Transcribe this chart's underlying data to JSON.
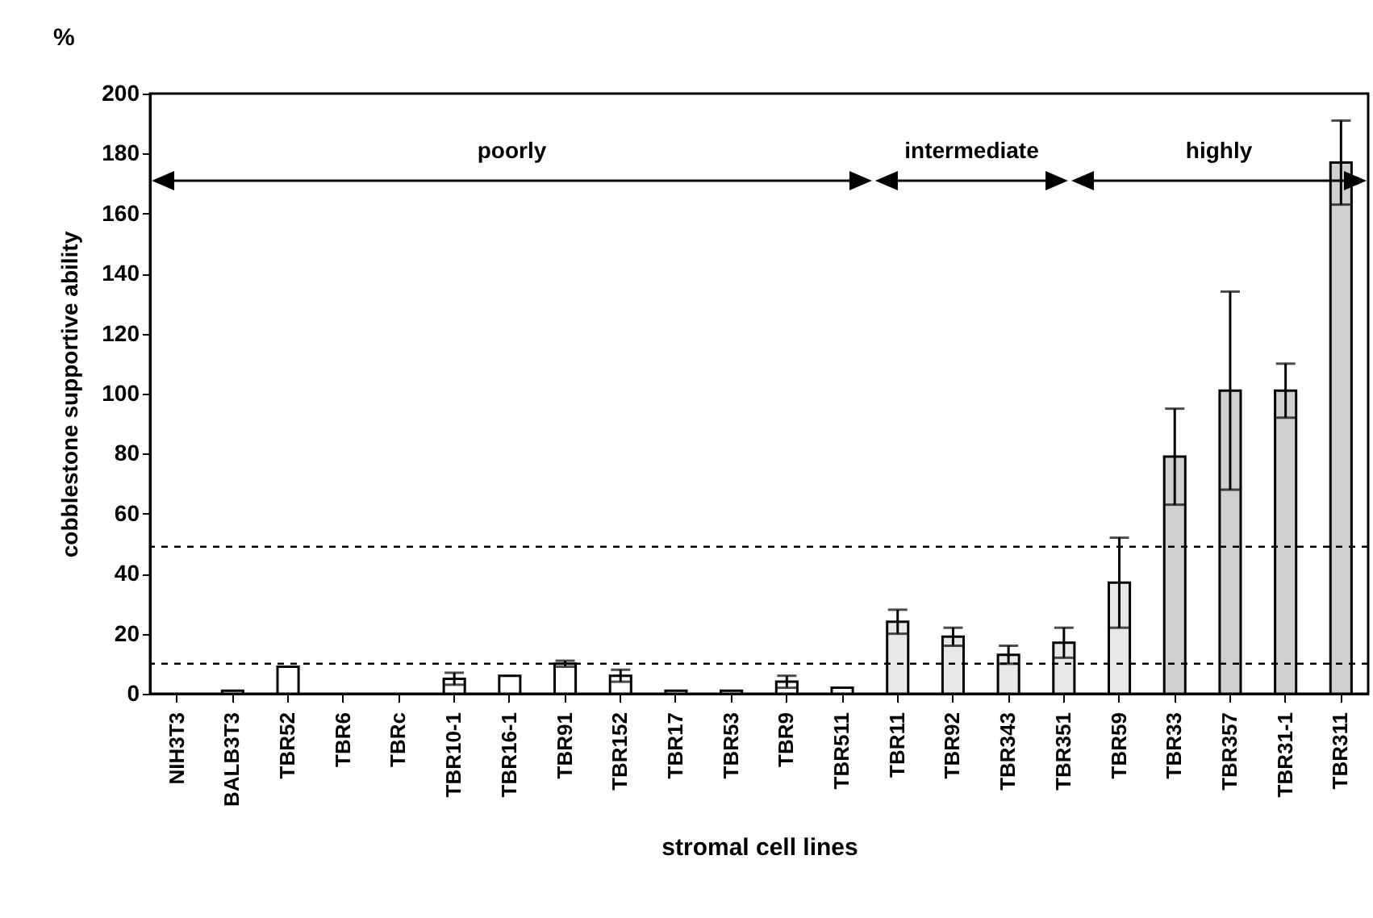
{
  "chart_data": {
    "type": "bar",
    "ylabel": "cobblestone supportive ability",
    "xlabel": "stromal cell lines",
    "categories": [
      "NIH3T3",
      "BALB3T3",
      "TBR52",
      "TBR6",
      "TBRc",
      "TBR10-1",
      "TBR16-1",
      "TBR91",
      "TBR152",
      "TBR17",
      "TBR53",
      "TBR9",
      "TBR511",
      "TBR11",
      "TBR92",
      "TBR343",
      "TBR351",
      "TBR59",
      "TBR33",
      "TBR357",
      "TBR31-1",
      "TBR311"
    ],
    "values": [
      0,
      1,
      9,
      0,
      0,
      5,
      6,
      10,
      6,
      1,
      1,
      4,
      2,
      24,
      19,
      13,
      17,
      37,
      79,
      101,
      101,
      177
    ],
    "errors": [
      null,
      null,
      null,
      null,
      null,
      2,
      null,
      1,
      2,
      null,
      null,
      2,
      null,
      4,
      3,
      3,
      5,
      15,
      16,
      33,
      9,
      14
    ],
    "colors": [
      "#ffffff",
      "#ffffff",
      "#ffffff",
      "#ffffff",
      "#ffffff",
      "#ffffff",
      "#ffffff",
      "#ffffff",
      "#ffffff",
      "#ffffff",
      "#ffffff",
      "#ffffff",
      "#ffffff",
      "#e8e8e8",
      "#e8e8e8",
      "#e8e8e8",
      "#e8e8e8",
      "#e8e8e8",
      "#d0d0d0",
      "#d0d0d0",
      "#d0d0d0",
      "#d0d0d0"
    ],
    "ylim": [
      0,
      200
    ],
    "yticks": [
      0,
      20,
      40,
      60,
      80,
      100,
      120,
      140,
      160,
      180,
      200
    ],
    "ref_lines": [
      {
        "axis": "y",
        "value": 49,
        "line_style": "dashed",
        "color": "#000000"
      },
      {
        "axis": "y",
        "value": 10,
        "line_style": "dashed",
        "color": "#000000"
      }
    ],
    "annotations": [
      "%",
      "poorly",
      "intermediate",
      "highly"
    ]
  }
}
